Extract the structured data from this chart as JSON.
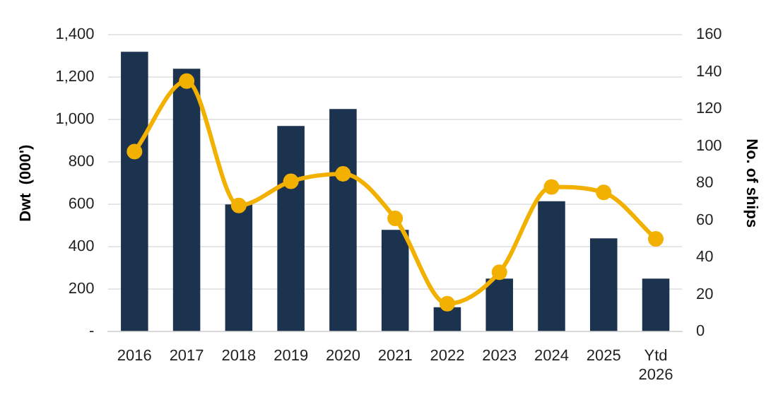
{
  "chart_data": {
    "type": "bar",
    "categories": [
      "2016",
      "2017",
      "2018",
      "2019",
      "2020",
      "2021",
      "2022",
      "2023",
      "2024",
      "2025",
      "Ytd 2026"
    ],
    "ylabel": "Dwt  (000')",
    "y2label": "No. of ships",
    "series": [
      {
        "color": "#1c3350",
        "values": [
          1320,
          1240,
          600,
          970,
          1050,
          480,
          115,
          250,
          615,
          440,
          250
        ]
      },
      {
        "type": "line",
        "axis": "y2",
        "color": "#f2b000",
        "marker": "circle",
        "values": [
          97,
          135,
          68,
          81,
          85,
          61,
          15,
          32,
          78,
          75,
          50
        ]
      }
    ],
    "ylim": [
      0,
      1400
    ],
    "yticks": [
      {
        "value": 0,
        "label": "-"
      },
      200,
      400,
      600,
      800,
      {
        "value": 1000,
        "label": "1,000"
      },
      {
        "value": 1200,
        "label": "1,200"
      },
      {
        "value": 1400,
        "label": "1,400"
      }
    ],
    "y2lim": [
      0,
      160
    ],
    "y2ticks": [
      0,
      20,
      40,
      60,
      80,
      100,
      120,
      140,
      160
    ],
    "grid": "y",
    "legend": false
  }
}
